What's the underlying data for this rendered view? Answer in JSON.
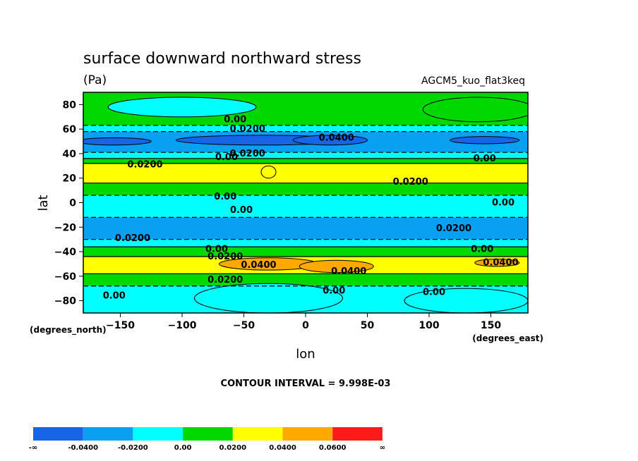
{
  "chart_data": {
    "type": "contour",
    "title": "surface downward northward stress",
    "units": "(Pa)",
    "dataset": "AGCM5_kuo_flat3keq",
    "xlabel": "lon",
    "ylabel": "lat",
    "x_units": "(degrees_east)",
    "y_units": "(degrees_north)",
    "xlim": [
      -180,
      180
    ],
    "ylim": [
      -90,
      90
    ],
    "xticks": [
      -150,
      -100,
      -50,
      0,
      50,
      100,
      150
    ],
    "yticks": [
      80,
      60,
      40,
      20,
      0,
      -20,
      -40,
      -60,
      -80
    ],
    "contour_interval_text": "CONTOUR INTERVAL = 9.998E-03",
    "colorbar": {
      "labels": [
        "-∞",
        "-0.0400",
        "-0.0200",
        "0.00",
        "0.0200",
        "0.0400",
        "0.0600",
        "∞"
      ],
      "colors": [
        "#1565e6",
        "#0aa0f2",
        "#00ffff",
        "#00d800",
        "#ffff00",
        "#ffa800",
        "#ff1a1a"
      ]
    },
    "bands": [
      {
        "lat_from": 90,
        "lat_to": 63,
        "level": "0.00 to 0.0200"
      },
      {
        "lat_from": 63,
        "lat_to": 58,
        "level": "-0.0200 to 0.00"
      },
      {
        "lat_from": 58,
        "lat_to": 41,
        "level": "-0.0400 to -0.0200"
      },
      {
        "lat_from": 41,
        "lat_to": 36,
        "level": "-0.0200 to 0.00"
      },
      {
        "lat_from": 36,
        "lat_to": 32,
        "level": "0.00 to 0.0200"
      },
      {
        "lat_from": 32,
        "lat_to": 16,
        "level": "0.0200 to 0.0400"
      },
      {
        "lat_from": 16,
        "lat_to": 6,
        "level": "0.00 to 0.0200"
      },
      {
        "lat_from": 6,
        "lat_to": -12,
        "level": "-0.0200 to 0.00"
      },
      {
        "lat_from": -12,
        "lat_to": -30,
        "level": "-0.0400 to -0.0200"
      },
      {
        "lat_from": -30,
        "lat_to": -36,
        "level": "-0.0200 to 0.00"
      },
      {
        "lat_from": -36,
        "lat_to": -44,
        "level": "0.00 to 0.0200"
      },
      {
        "lat_from": -44,
        "lat_to": -58,
        "level": "0.0200 to 0.0400"
      },
      {
        "lat_from": -58,
        "lat_to": -68,
        "level": "0.00 to 0.0200"
      },
      {
        "lat_from": -68,
        "lat_to": -90,
        "level": "-0.0200 to 0.00"
      }
    ],
    "contour_labels": [
      {
        "text": "0.00",
        "lon": -57,
        "lat": 68
      },
      {
        "text": "0.0200",
        "lon": -47,
        "lat": 60
      },
      {
        "text": "0.0400",
        "lon": 25,
        "lat": 53
      },
      {
        "text": "0.0200",
        "lon": -47,
        "lat": 40
      },
      {
        "text": "0.00",
        "lon": -64,
        "lat": 37
      },
      {
        "text": "0.00",
        "lon": 145,
        "lat": 36
      },
      {
        "text": "0.0200",
        "lon": -130,
        "lat": 31
      },
      {
        "text": "0.0200",
        "lon": 85,
        "lat": 17
      },
      {
        "text": "0.00",
        "lon": -65,
        "lat": 5
      },
      {
        "text": "0.00",
        "lon": -52,
        "lat": -6
      },
      {
        "text": "0.00",
        "lon": 160,
        "lat": 0
      },
      {
        "text": "0.0200",
        "lon": 120,
        "lat": -21
      },
      {
        "text": "0.0200",
        "lon": -140,
        "lat": -29
      },
      {
        "text": "0.00",
        "lon": -72,
        "lat": -38
      },
      {
        "text": "0.00",
        "lon": 143,
        "lat": -38
      },
      {
        "text": "0.0200",
        "lon": -65,
        "lat": -44
      },
      {
        "text": "0.0400",
        "lon": -38,
        "lat": -51
      },
      {
        "text": "0.0400",
        "lon": 35,
        "lat": -56
      },
      {
        "text": "0.0400",
        "lon": 158,
        "lat": -49
      },
      {
        "text": "0.0200",
        "lon": -65,
        "lat": -63
      },
      {
        "text": "0.00",
        "lon": -155,
        "lat": -76
      },
      {
        "text": "0.00",
        "lon": 23,
        "lat": -72
      },
      {
        "text": "0.00",
        "lon": 104,
        "lat": -73
      }
    ]
  }
}
